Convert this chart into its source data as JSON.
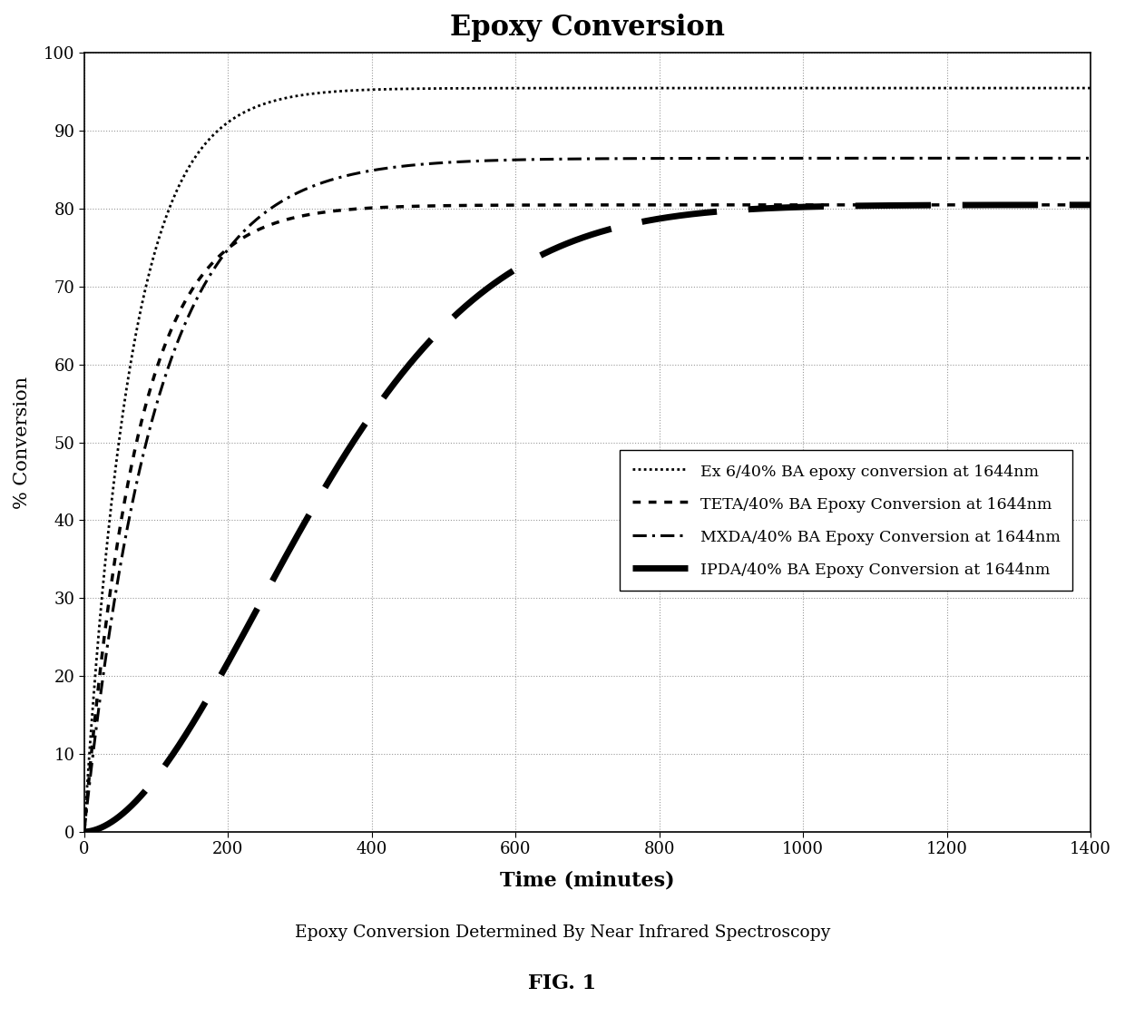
{
  "title": "Epoxy Conversion",
  "xlabel": "Time (minutes)",
  "ylabel": "% Conversion",
  "xlim": [
    0,
    1400
  ],
  "ylim": [
    0,
    100
  ],
  "xticks": [
    0,
    200,
    400,
    600,
    800,
    1000,
    1200,
    1400
  ],
  "yticks": [
    0,
    10,
    20,
    30,
    40,
    50,
    60,
    70,
    80,
    90,
    100
  ],
  "subtitle": "Epoxy Conversion Determined By Near Infrared Spectroscopy",
  "fig_label": "FIG. 1",
  "background_color": "#ffffff",
  "series": [
    {
      "label": "IPDA/40% BA Epoxy Conversion at 1644nm",
      "asymptote": 80.5,
      "shape": 1.8,
      "scale": 380,
      "color": "#000000",
      "linestyle": "dashed_thick",
      "linewidth": 4.5
    },
    {
      "label": "MXDA/40% BA Epoxy Conversion at 1644nm",
      "asymptote": 86.5,
      "shape": 1.0,
      "scale": 100,
      "color": "#000000",
      "linestyle": "dash_dot",
      "linewidth": 2.0
    },
    {
      "label": "TETA/40% BA Epoxy Conversion at 1644nm",
      "asymptote": 80.5,
      "shape": 1.0,
      "scale": 75,
      "color": "#000000",
      "linestyle": "dotted",
      "linewidth": 2.5
    },
    {
      "label": "Ex 6/40% BA epoxy conversion at 1644nm",
      "asymptote": 95.5,
      "shape": 1.0,
      "scale": 65,
      "color": "#000000",
      "linestyle": "dense_dotted",
      "linewidth": 2.0
    }
  ]
}
